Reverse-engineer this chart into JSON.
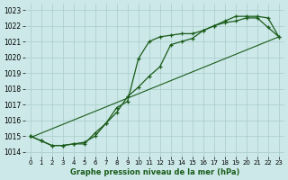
{
  "title": "Graphe pression niveau de la mer (hPa)",
  "bg_color": "#cce8e8",
  "grid_color": "#aacccc",
  "line_color": "#1a5c1a",
  "ylim": [
    1013.7,
    1023.4
  ],
  "xlim": [
    -0.5,
    23.5
  ],
  "yticks": [
    1014,
    1015,
    1016,
    1017,
    1018,
    1019,
    1020,
    1021,
    1022,
    1023
  ],
  "xticks": [
    0,
    1,
    2,
    3,
    4,
    5,
    6,
    7,
    8,
    9,
    10,
    11,
    12,
    13,
    14,
    15,
    16,
    17,
    18,
    19,
    20,
    21,
    22,
    23
  ],
  "series1_x": [
    0,
    1,
    2,
    3,
    4,
    5,
    6,
    7,
    8,
    9,
    10,
    11,
    12,
    13,
    14,
    15,
    16,
    17,
    18,
    19,
    20,
    21,
    22,
    23
  ],
  "series1_y": [
    1015.0,
    1014.7,
    1014.4,
    1014.4,
    1014.5,
    1014.5,
    1015.2,
    1015.8,
    1016.8,
    1017.2,
    1019.9,
    1021.0,
    1021.3,
    1021.4,
    1021.5,
    1021.5,
    1021.7,
    1022.0,
    1022.2,
    1022.3,
    1022.5,
    1022.5,
    1021.9,
    1021.3
  ],
  "series2_x": [
    0,
    1,
    2,
    3,
    4,
    5,
    6,
    7,
    8,
    9,
    10,
    11,
    12,
    13,
    14,
    15,
    16,
    17,
    18,
    19,
    20,
    21,
    22,
    23
  ],
  "series2_y": [
    1015.0,
    1014.7,
    1014.4,
    1014.4,
    1014.5,
    1014.6,
    1015.0,
    1015.8,
    1016.5,
    1017.5,
    1018.1,
    1018.8,
    1019.4,
    1020.8,
    1021.0,
    1021.2,
    1021.7,
    1022.0,
    1022.3,
    1022.6,
    1022.6,
    1022.6,
    1022.5,
    1021.3
  ],
  "series3_x": [
    0,
    23
  ],
  "series3_y": [
    1014.9,
    1021.3
  ]
}
